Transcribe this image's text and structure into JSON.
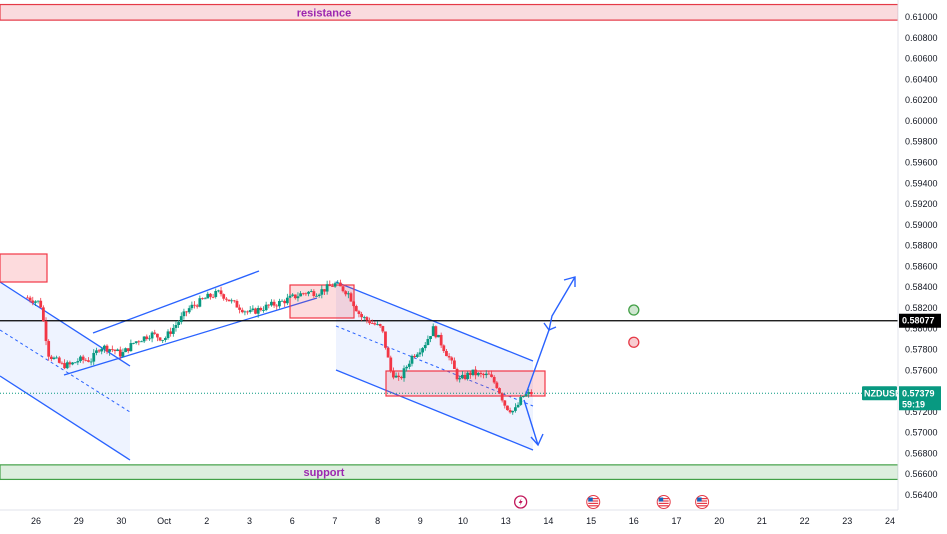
{
  "chart_data": {
    "type": "candlestick",
    "symbol": "NZDUSD",
    "current_price": "0.57379",
    "countdown": "59:19",
    "horizontal_level": "0.58077",
    "ylim": [
      0.5635,
      0.6118
    ],
    "y_ticks": [
      "0.61000",
      "0.60800",
      "0.60600",
      "0.60400",
      "0.60200",
      "0.60000",
      "0.59800",
      "0.59600",
      "0.59400",
      "0.59200",
      "0.59000",
      "0.58800",
      "0.58600",
      "0.58400",
      "0.58200",
      "0.58000",
      "0.57800",
      "0.57600",
      "0.57400",
      "0.57200",
      "0.57000",
      "0.56800",
      "0.56600",
      "0.56400"
    ],
    "x_ticks": [
      "26",
      "29",
      "30",
      "Oct",
      "2",
      "3",
      "6",
      "7",
      "8",
      "9",
      "10",
      "13",
      "14",
      "15",
      "16",
      "17",
      "20",
      "21",
      "22",
      "23",
      "24"
    ],
    "x_tick_index": [
      0,
      1,
      2,
      3,
      4,
      5,
      6,
      7,
      8,
      9,
      10,
      11,
      12,
      13,
      14,
      15,
      16,
      17,
      18,
      19,
      20
    ],
    "zones": [
      {
        "label": "resistance",
        "top": 0.6112,
        "bottom": 0.6097,
        "color": "#e53946"
      },
      {
        "label": "support",
        "top": 0.5669,
        "bottom": 0.5655,
        "color": "#43a047"
      }
    ],
    "series": [
      {
        "type": "path",
        "points": [
          [
            -0.2,
            0.583
          ],
          [
            0.1,
            0.5825
          ],
          [
            0.3,
            0.5775
          ],
          [
            0.6,
            0.5765
          ],
          [
            0.8,
            0.5765
          ],
          [
            1.0,
            0.577
          ],
          [
            1.3,
            0.577
          ],
          [
            1.5,
            0.5783
          ],
          [
            1.8,
            0.578
          ],
          [
            2.0,
            0.5775
          ],
          [
            2.3,
            0.5787
          ],
          [
            2.7,
            0.5795
          ],
          [
            3.0,
            0.579
          ],
          [
            3.3,
            0.5805
          ],
          [
            3.6,
            0.582
          ],
          [
            4.0,
            0.583
          ],
          [
            4.3,
            0.5835
          ],
          [
            4.6,
            0.5825
          ],
          [
            5.0,
            0.5815
          ],
          [
            5.3,
            0.582
          ],
          [
            5.7,
            0.5825
          ],
          [
            6.0,
            0.583
          ],
          [
            6.3,
            0.5835
          ],
          [
            6.6,
            0.5835
          ],
          [
            7.0,
            0.5843
          ],
          [
            7.3,
            0.5835
          ],
          [
            7.6,
            0.5812
          ],
          [
            7.9,
            0.5805
          ],
          [
            8.1,
            0.58
          ],
          [
            8.3,
            0.576
          ],
          [
            8.5,
            0.575
          ],
          [
            8.8,
            0.5773
          ],
          [
            9.1,
            0.5785
          ],
          [
            9.3,
            0.58
          ],
          [
            9.5,
            0.5785
          ],
          [
            9.7,
            0.577
          ],
          [
            9.9,
            0.575
          ],
          [
            10.2,
            0.5758
          ],
          [
            10.4,
            0.5755
          ],
          [
            10.6,
            0.5755
          ],
          [
            10.8,
            0.5745
          ],
          [
            11.0,
            0.5725
          ],
          [
            11.2,
            0.572
          ],
          [
            11.4,
            0.5735
          ],
          [
            11.6,
            0.5738
          ]
        ]
      }
    ]
  },
  "badges": {
    "symbol": "NZDUSD",
    "price": "0.57379",
    "countdown": "59:19",
    "level": "0.58077"
  },
  "colors": {
    "up": "#089981",
    "down": "#f23645",
    "channel": "#2962ff",
    "channel_fill": "#2962ff",
    "level_line": "#000000",
    "current_line": "#089981"
  },
  "events": [
    {
      "kind": "earnings-icon",
      "x": 11.35
    },
    {
      "kind": "us-flag-icon",
      "x": 13.05
    },
    {
      "kind": "us-flag-icon",
      "x": 14.7
    },
    {
      "kind": "us-flag-icon",
      "x": 15.6
    }
  ],
  "markers": [
    {
      "kind": "green-circle",
      "x": 14.0,
      "y": 0.5818,
      "color": "#43a047"
    },
    {
      "kind": "red-circle",
      "x": 14.0,
      "y": 0.5787,
      "color": "#e53946"
    }
  ]
}
